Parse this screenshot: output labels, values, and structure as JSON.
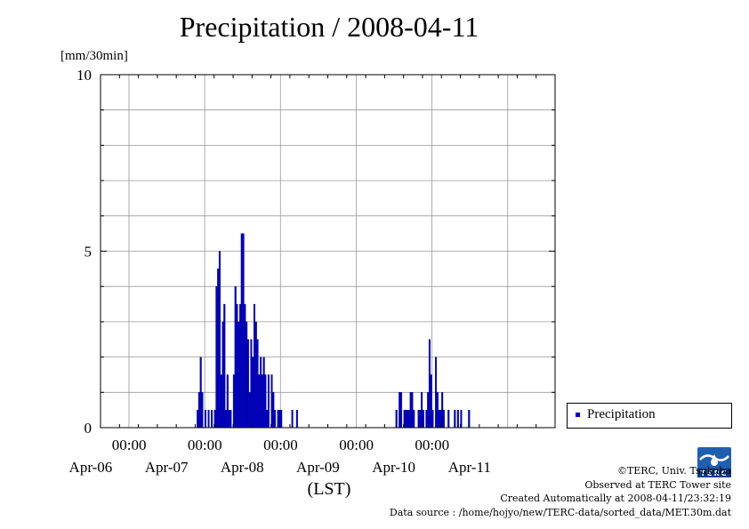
{
  "title": "Precipitation / 2008-04-11",
  "chart_data": {
    "type": "bar",
    "title": "Precipitation / 2008-04-11",
    "ylabel": "[mm/30min]",
    "xlabel": "(LST)",
    "ylim": [
      0,
      10
    ],
    "y_ticks": [
      "0",
      "5",
      "10"
    ],
    "x_range_days": [
      "2008-04-05 15:00",
      "2008-04-11 15:00"
    ],
    "x_time_labels": [
      "00:00",
      "00:00",
      "00:00",
      "00:00",
      "00:00"
    ],
    "x_date_labels": [
      "Apr-06",
      "Apr-07",
      "Apr-08",
      "Apr-09",
      "Apr-10",
      "Apr-11"
    ],
    "grid": true,
    "legend_position": "right",
    "series": [
      {
        "name": "Precipitation",
        "color": "#0000cc",
        "points": [
          [
            "2008-04-06 21:30",
            0.5
          ],
          [
            "2008-04-06 22:00",
            1.0
          ],
          [
            "2008-04-06 22:30",
            2.0
          ],
          [
            "2008-04-06 23:00",
            1.0
          ],
          [
            "2008-04-07 00:00",
            0.5
          ],
          [
            "2008-04-07 01:00",
            0.5
          ],
          [
            "2008-04-07 02:00",
            0.5
          ],
          [
            "2008-04-07 03:00",
            0.5
          ],
          [
            "2008-04-07 03:30",
            4.0
          ],
          [
            "2008-04-07 04:00",
            4.5
          ],
          [
            "2008-04-07 04:30",
            5.0
          ],
          [
            "2008-04-07 05:00",
            1.5
          ],
          [
            "2008-04-07 05:30",
            3.0
          ],
          [
            "2008-04-07 06:00",
            3.5
          ],
          [
            "2008-04-07 06:30",
            0.5
          ],
          [
            "2008-04-07 07:00",
            1.5
          ],
          [
            "2008-04-07 07:30",
            0.5
          ],
          [
            "2008-04-07 08:00",
            0.5
          ],
          [
            "2008-04-07 09:00",
            1.5
          ],
          [
            "2008-04-07 09:30",
            4.0
          ],
          [
            "2008-04-07 10:00",
            3.5
          ],
          [
            "2008-04-07 10:30",
            3.0
          ],
          [
            "2008-04-07 11:00",
            3.5
          ],
          [
            "2008-04-07 11:30",
            5.5
          ],
          [
            "2008-04-07 12:00",
            5.5
          ],
          [
            "2008-04-07 12:30",
            3.5
          ],
          [
            "2008-04-07 13:00",
            3.0
          ],
          [
            "2008-04-07 13:30",
            2.5
          ],
          [
            "2008-04-07 14:00",
            1.0
          ],
          [
            "2008-04-07 14:30",
            2.5
          ],
          [
            "2008-04-07 15:00",
            2.0
          ],
          [
            "2008-04-07 15:30",
            3.5
          ],
          [
            "2008-04-07 16:00",
            3.0
          ],
          [
            "2008-04-07 16:30",
            2.5
          ],
          [
            "2008-04-07 17:00",
            1.5
          ],
          [
            "2008-04-07 17:30",
            2.0
          ],
          [
            "2008-04-07 18:00",
            1.5
          ],
          [
            "2008-04-07 18:30",
            2.0
          ],
          [
            "2008-04-07 19:00",
            1.5
          ],
          [
            "2008-04-07 19:30",
            0.5
          ],
          [
            "2008-04-07 20:00",
            1.5
          ],
          [
            "2008-04-07 21:00",
            1.5
          ],
          [
            "2008-04-07 21:30",
            1.0
          ],
          [
            "2008-04-07 22:00",
            0.5
          ],
          [
            "2008-04-07 23:00",
            0.5
          ],
          [
            "2008-04-07 23:30",
            0.5
          ],
          [
            "2008-04-08 00:00",
            0.5
          ],
          [
            "2008-04-08 03:30",
            0.5
          ],
          [
            "2008-04-08 05:00",
            0.5
          ],
          [
            "2008-04-09 12:30",
            0.5
          ],
          [
            "2008-04-09 13:30",
            1.0
          ],
          [
            "2008-04-09 14:00",
            1.0
          ],
          [
            "2008-04-09 15:00",
            0.5
          ],
          [
            "2008-04-09 15:30",
            0.5
          ],
          [
            "2008-04-09 16:00",
            0.5
          ],
          [
            "2008-04-09 16:30",
            0.5
          ],
          [
            "2008-04-09 17:00",
            1.0
          ],
          [
            "2008-04-09 17:30",
            1.0
          ],
          [
            "2008-04-09 18:00",
            0.5
          ],
          [
            "2008-04-09 19:30",
            0.5
          ],
          [
            "2008-04-09 20:00",
            0.5
          ],
          [
            "2008-04-09 20:30",
            1.0
          ],
          [
            "2008-04-09 21:00",
            0.5
          ],
          [
            "2008-04-09 22:00",
            0.5
          ],
          [
            "2008-04-09 22:30",
            1.0
          ],
          [
            "2008-04-09 23:00",
            2.5
          ],
          [
            "2008-04-09 23:30",
            1.5
          ],
          [
            "2008-04-10 00:00",
            0.5
          ],
          [
            "2008-04-10 01:00",
            2.0
          ],
          [
            "2008-04-10 01:30",
            1.0
          ],
          [
            "2008-04-10 02:00",
            0.5
          ],
          [
            "2008-04-10 02:30",
            0.5
          ],
          [
            "2008-04-10 03:00",
            1.0
          ],
          [
            "2008-04-10 03:30",
            0.5
          ],
          [
            "2008-04-10 05:00",
            0.5
          ],
          [
            "2008-04-10 07:00",
            0.5
          ],
          [
            "2008-04-10 08:00",
            0.5
          ],
          [
            "2008-04-10 09:00",
            0.5
          ],
          [
            "2008-04-10 11:30",
            0.5
          ]
        ]
      }
    ]
  },
  "credits": {
    "line1": "©TERC, Univ. Tsukuba",
    "line2": "Observed at TERC Tower site",
    "line3": "Created Automatically at 2008-04-11/23:32:19",
    "line4": "Data source : /home/hojyo/new/TERC-data/sorted_data/MET.30m.dat",
    "logo_text": "TERC"
  }
}
